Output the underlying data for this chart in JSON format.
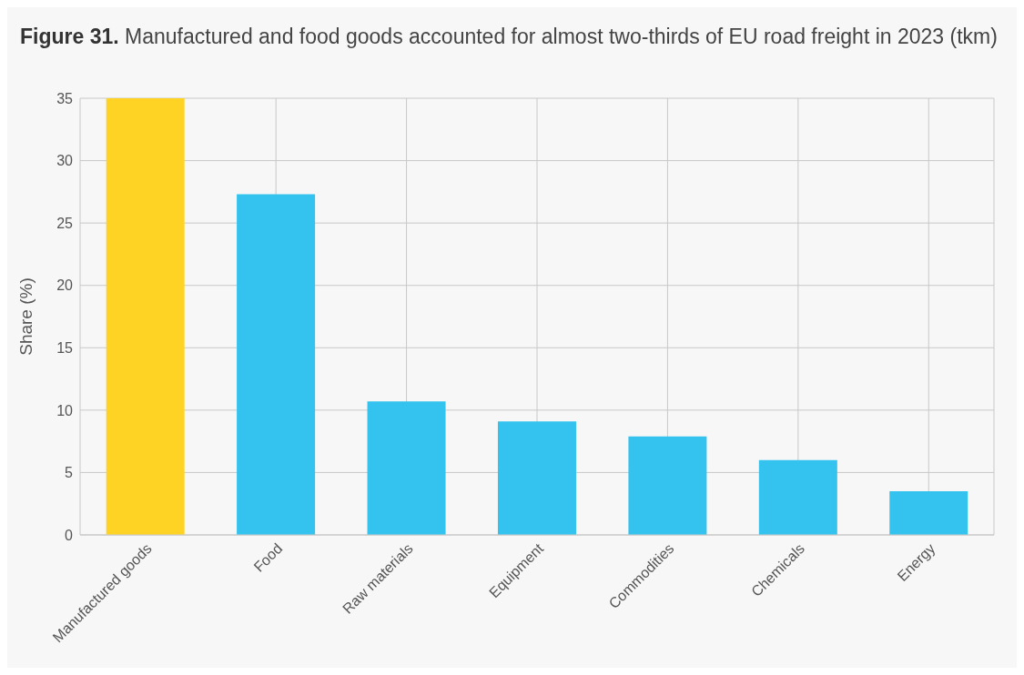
{
  "chart_data": {
    "type": "bar",
    "title": "Figure 31. Manufactured and food goods accounted for almost two-thirds of EU road freight in 2023 (tkm)",
    "ylabel": "Share (%)",
    "categories": [
      "Manufactured goods",
      "Food",
      "Raw materials",
      "Equipment",
      "Commodities",
      "Chemicals",
      "Energy"
    ],
    "values": [
      35.0,
      27.3,
      10.7,
      9.1,
      7.9,
      6.0,
      3.5
    ],
    "colors": [
      "#ffd324",
      "#33c3ee",
      "#33c3ee",
      "#33c3ee",
      "#33c3ee",
      "#33c3ee",
      "#33c3ee"
    ],
    "ylim": [
      0,
      35
    ],
    "yticks": [
      0,
      5,
      10,
      15,
      20,
      25,
      30,
      35
    ],
    "grid": true
  }
}
